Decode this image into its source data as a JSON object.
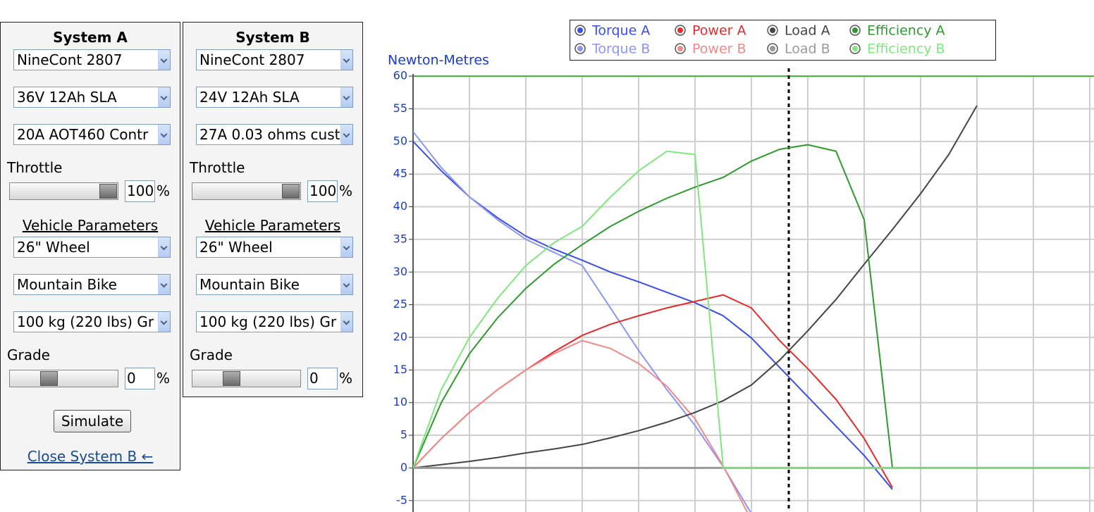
{
  "panels": [
    {
      "title": "System A",
      "selects": [
        "NineCont 2807",
        "36V 12Ah SLA",
        "20A AOT460 Contr"
      ],
      "throttle_label": "Throttle",
      "throttle_value": 100,
      "unit": "%",
      "vehicle_heading": "Vehicle Parameters",
      "vehicle_selects": [
        "26\"  Wheel",
        "Mountain Bike",
        "100 kg (220 lbs) Gr"
      ],
      "grade_label": "Grade",
      "grade_value": 0
    },
    {
      "title": "System B",
      "selects": [
        "NineCont 2807",
        "24V 12Ah SLA",
        "27A 0.03 ohms cust"
      ],
      "throttle_label": "Throttle",
      "throttle_value": 100,
      "unit": "%",
      "vehicle_heading": "Vehicle Parameters",
      "vehicle_selects": [
        "26\"  Wheel",
        "Mountain Bike",
        "100 kg (220 lbs) Gr"
      ],
      "grade_label": "Grade",
      "grade_value": 0
    }
  ],
  "button": "Simulate",
  "link": "Close System B ←",
  "chart_data": {
    "type": "line",
    "y_label": "Newton-Metres",
    "grid": true,
    "categories": [
      null,
      null,
      null,
      null,
      null,
      null,
      null,
      null,
      null,
      null,
      null,
      null,
      null,
      null,
      null,
      null,
      null,
      null,
      null,
      null,
      null,
      null,
      null,
      null,
      null
    ],
    "ylim": [
      -6.75,
      61.2
    ],
    "yticks": [
      60,
      55,
      50,
      45,
      40,
      35,
      30,
      25,
      20,
      15,
      10,
      5,
      0,
      -5
    ],
    "series": [
      {
        "name": "Torque A",
        "color": "#3a4ee8",
        "values": [
          50,
          45.5,
          41.5,
          38.3,
          35.5,
          33.5,
          31.8,
          30,
          28.5,
          26.9,
          25.3,
          23.3,
          19.9,
          15.4,
          10.9,
          6.4,
          1.9,
          -3.3,
          null,
          null,
          null,
          null,
          null,
          null,
          null
        ]
      },
      {
        "name": "Torque B",
        "color": "#8c96f0",
        "values": [
          51.5,
          46,
          41.5,
          38,
          35,
          33,
          31,
          24.5,
          18,
          12,
          6.5,
          0.2,
          -7,
          null,
          null,
          null,
          null,
          null,
          null,
          null,
          null,
          null,
          null,
          null,
          null
        ]
      },
      {
        "name": "Power A",
        "color": "#e52a2a",
        "values": [
          0,
          4.5,
          8.5,
          12,
          15,
          17.8,
          20.3,
          22,
          23.3,
          24.5,
          25.5,
          26.5,
          24.5,
          19.5,
          15.2,
          10.5,
          4.5,
          -3,
          null,
          null,
          null,
          null,
          null,
          null,
          null
        ]
      },
      {
        "name": "Power B",
        "color": "#f08a8a",
        "values": [
          0,
          4.5,
          8.5,
          12,
          15,
          17.5,
          19.5,
          18.3,
          16,
          12.5,
          7.5,
          0.3,
          -8,
          null,
          null,
          null,
          null,
          null,
          null,
          null,
          null,
          null,
          null,
          null,
          null
        ]
      },
      {
        "name": "Load A",
        "color": "#444444",
        "values": [
          0,
          0.5,
          1,
          1.6,
          2.3,
          2.9,
          3.6,
          4.6,
          5.7,
          7,
          8.5,
          10.3,
          12.7,
          16.5,
          21,
          25.8,
          31.2,
          36.5,
          42,
          48,
          55.5,
          null,
          null,
          null,
          null
        ]
      },
      {
        "name": "Load B",
        "color": "#999999",
        "values": [
          0,
          0,
          0,
          0,
          0,
          0,
          0,
          0,
          0,
          0,
          0,
          0,
          0,
          0,
          0,
          0,
          0,
          0,
          0,
          0,
          0,
          0,
          0,
          0,
          0
        ]
      },
      {
        "name": "Efficiency A",
        "color": "#2e9a2e",
        "values": [
          0,
          10,
          17.5,
          23,
          27.5,
          31.2,
          34.2,
          37,
          39.3,
          41.3,
          43,
          44.5,
          47,
          48.8,
          49.5,
          48.5,
          38,
          0,
          0,
          0,
          0,
          0,
          0,
          0,
          0
        ]
      },
      {
        "name": "Efficiency B",
        "color": "#7ee87e",
        "values": [
          0,
          12,
          20,
          26,
          31,
          34.5,
          37,
          41.5,
          45.5,
          48.5,
          48,
          0,
          0,
          0,
          0,
          0,
          0,
          0,
          0,
          0,
          0,
          0,
          0,
          0,
          0
        ]
      }
    ]
  }
}
